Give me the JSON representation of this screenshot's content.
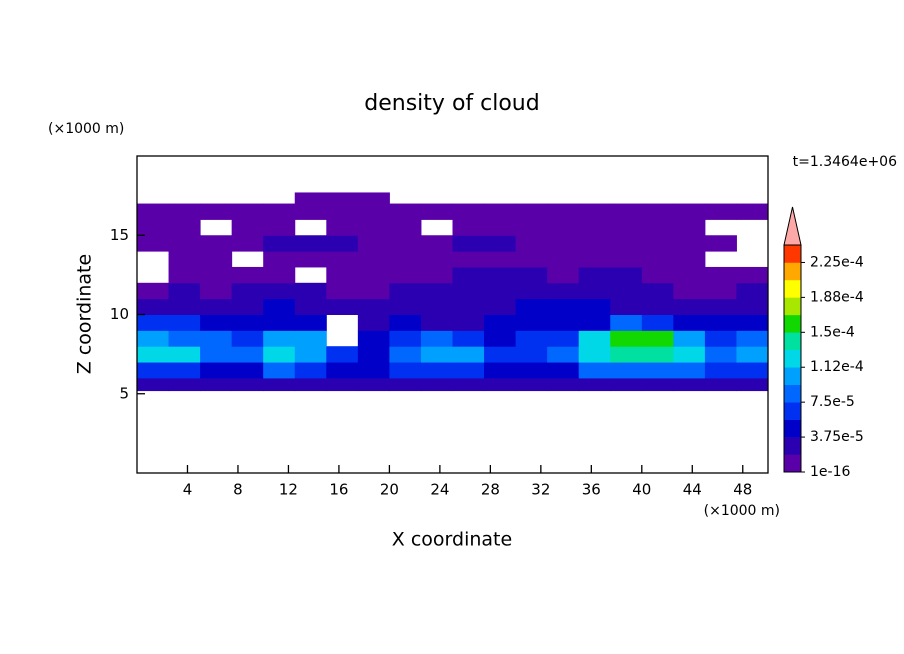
{
  "chart_data": {
    "type": "contour",
    "title": "density of cloud",
    "xlabel": "X coordinate",
    "ylabel": "Z coordinate",
    "xunit": "(×1000 m)",
    "yunit": "(×1000 m)",
    "annotation": "t=1.3464e+06",
    "xlim": [
      0,
      50
    ],
    "ylim": [
      0,
      20
    ],
    "xticks": [
      4,
      8,
      12,
      16,
      20,
      24,
      28,
      32,
      36,
      40,
      44,
      48
    ],
    "yticks": [
      5,
      10,
      15
    ],
    "x_edges": [
      0,
      2.5,
      5,
      7.5,
      10,
      12.5,
      15,
      17.5,
      20,
      22.5,
      25,
      27.5,
      30,
      32.5,
      35,
      37.5,
      40,
      42.5,
      45,
      47.5,
      50
    ],
    "z_edges": [
      5.2,
      6,
      7,
      8,
      9,
      10,
      11,
      12,
      13,
      14,
      15,
      16,
      17,
      17.7
    ],
    "values": [
      [
        2e-05,
        2e-05,
        2e-05,
        2e-05,
        2e-05,
        2e-05,
        2e-05,
        2e-05,
        2e-05,
        2e-05,
        2e-05,
        2e-05,
        2e-05,
        2e-05,
        2e-05,
        2e-05,
        2e-05,
        2e-05,
        2e-05,
        2e-05
      ],
      [
        6e-05,
        6e-05,
        4e-05,
        4e-05,
        8e-05,
        6e-05,
        4e-05,
        4e-05,
        6e-05,
        6e-05,
        6e-05,
        4e-05,
        4e-05,
        4e-05,
        8e-05,
        8e-05,
        8e-05,
        8e-05,
        6e-05,
        6e-05
      ],
      [
        0.00012,
        0.00012,
        8e-05,
        8e-05,
        0.00012,
        0.0001,
        6e-05,
        4e-05,
        8e-05,
        0.0001,
        0.0001,
        6e-05,
        6e-05,
        8e-05,
        0.00012,
        0.00014,
        0.00014,
        0.00012,
        8e-05,
        0.0001
      ],
      [
        0.0001,
        8e-05,
        8e-05,
        6e-05,
        0.0001,
        0.0001,
        null,
        4e-05,
        6e-05,
        8e-05,
        6e-05,
        4e-05,
        6e-05,
        6e-05,
        0.00012,
        0.00016,
        0.00016,
        0.0001,
        6e-05,
        8e-05
      ],
      [
        6e-05,
        6e-05,
        4e-05,
        4e-05,
        4e-05,
        4e-05,
        null,
        2e-05,
        4e-05,
        2e-05,
        2e-05,
        4e-05,
        4e-05,
        4e-05,
        4e-05,
        8e-05,
        6e-05,
        4e-05,
        4e-05,
        4e-05
      ],
      [
        2e-05,
        2e-05,
        2e-05,
        2e-05,
        4e-05,
        2e-05,
        2e-05,
        2e-05,
        2e-05,
        2e-05,
        2e-05,
        2e-05,
        4e-05,
        4e-05,
        4e-05,
        2e-05,
        2e-05,
        2e-05,
        2e-05,
        2e-05
      ],
      [
        1e-06,
        2e-05,
        1e-06,
        2e-05,
        2e-05,
        2e-05,
        1e-06,
        1e-06,
        2e-05,
        2e-05,
        2e-05,
        2e-05,
        2e-05,
        2e-05,
        2e-05,
        2e-05,
        2e-05,
        1e-06,
        1e-06,
        2e-05
      ],
      [
        null,
        1e-06,
        1e-06,
        1e-06,
        1e-06,
        null,
        1e-06,
        1e-06,
        1e-06,
        1e-06,
        2e-05,
        2e-05,
        2e-05,
        1e-06,
        2e-05,
        2e-05,
        1e-06,
        1e-06,
        1e-06,
        1e-06
      ],
      [
        null,
        1e-06,
        1e-06,
        null,
        1e-06,
        1e-06,
        1e-06,
        1e-06,
        1e-06,
        1e-06,
        1e-06,
        1e-06,
        1e-06,
        1e-06,
        1e-06,
        1e-06,
        1e-06,
        1e-06,
        null,
        null
      ],
      [
        1e-06,
        1e-06,
        1e-06,
        1e-06,
        2e-05,
        2e-05,
        2e-05,
        1e-06,
        1e-06,
        1e-06,
        2e-05,
        2e-05,
        1e-06,
        1e-06,
        1e-06,
        1e-06,
        1e-06,
        1e-06,
        1e-06,
        null
      ],
      [
        1e-06,
        1e-06,
        null,
        1e-06,
        1e-06,
        null,
        1e-06,
        1e-06,
        1e-06,
        null,
        1e-06,
        1e-06,
        1e-06,
        1e-06,
        1e-06,
        1e-06,
        1e-06,
        1e-06,
        null,
        null
      ],
      [
        1e-06,
        1e-06,
        1e-06,
        1e-06,
        1e-06,
        1e-06,
        1e-06,
        1e-06,
        1e-06,
        1e-06,
        1e-06,
        1e-06,
        1e-06,
        1e-06,
        1e-06,
        1e-06,
        1e-06,
        1e-06,
        1e-06,
        1e-06
      ],
      [
        null,
        null,
        null,
        null,
        null,
        1e-06,
        1e-06,
        1e-06,
        null,
        null,
        null,
        null,
        null,
        null,
        null,
        null,
        null,
        null,
        null,
        null
      ]
    ],
    "levels": [
      1e-16,
      1.875e-05,
      3.75e-05,
      5.625e-05,
      7.5e-05,
      9.375e-05,
      0.0001125,
      0.00013125,
      0.00015,
      0.00016875,
      0.0001875,
      0.00020625,
      0.000225,
      0.00024375
    ],
    "colors": [
      "#5a00a8",
      "#2a00b0",
      "#0000c8",
      "#0030f0",
      "#0068ff",
      "#00a0ff",
      "#00d8e8",
      "#00e0a0",
      "#10d800",
      "#a8e800",
      "#ffff00",
      "#ffa800",
      "#ff3800"
    ],
    "extend_color": "#ffa8a8",
    "colorbar_ticks": [
      1e-16,
      {
        "value": 3.75e-05,
        "label": "3.75e-5"
      },
      {
        "value": 7.5e-05,
        "label": "7.5e-5"
      },
      {
        "value": 0.0001125,
        "label": "1.12e-4"
      },
      {
        "value": 0.00015,
        "label": "1.5e-4"
      },
      {
        "value": 0.0001875,
        "label": "1.88e-4"
      },
      {
        "value": 0.000225,
        "label": "2.25e-4"
      }
    ]
  }
}
